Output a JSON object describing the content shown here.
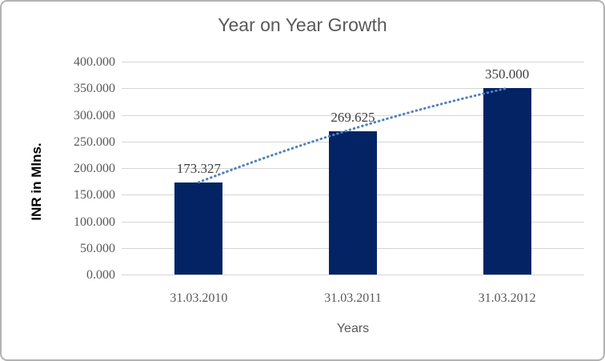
{
  "window": {
    "background": "#ffffff",
    "border_color": "#b3b3b3"
  },
  "chart_data": {
    "type": "bar",
    "title": "Year on Year Growth",
    "xlabel": "Years",
    "ylabel": "INR in Mlns.",
    "categories": [
      "31.03.2010",
      "31.03.2011",
      "31.03.2012"
    ],
    "series": [
      {
        "name": "INR in Mlns.",
        "values": [
          173.327,
          269.625,
          350.0
        ]
      }
    ],
    "data_labels": [
      "173.327",
      "269.625",
      "350.000"
    ],
    "ylim": [
      0,
      400
    ],
    "ytick_step": 50,
    "ytick_labels": [
      "400.000",
      "350.000",
      "300.000",
      "250.000",
      "200.000",
      "150.000",
      "100.000",
      "50.000",
      "0.000"
    ],
    "grid": true,
    "legend": "none",
    "trendline": {
      "style": "dotted",
      "shape": "slightly-bowed-line",
      "from_category_index": 0,
      "to_category_index": 2,
      "color": "#4e81bd"
    },
    "colors": {
      "bar": "#032364",
      "grid": "#d6d6d6",
      "title_text": "#595959",
      "tick_text": "#595959",
      "data_label_text": "#404040",
      "y_axis_title_text": "#000000",
      "x_axis_title_text": "#595959",
      "trendline": "#4e81bd"
    }
  }
}
